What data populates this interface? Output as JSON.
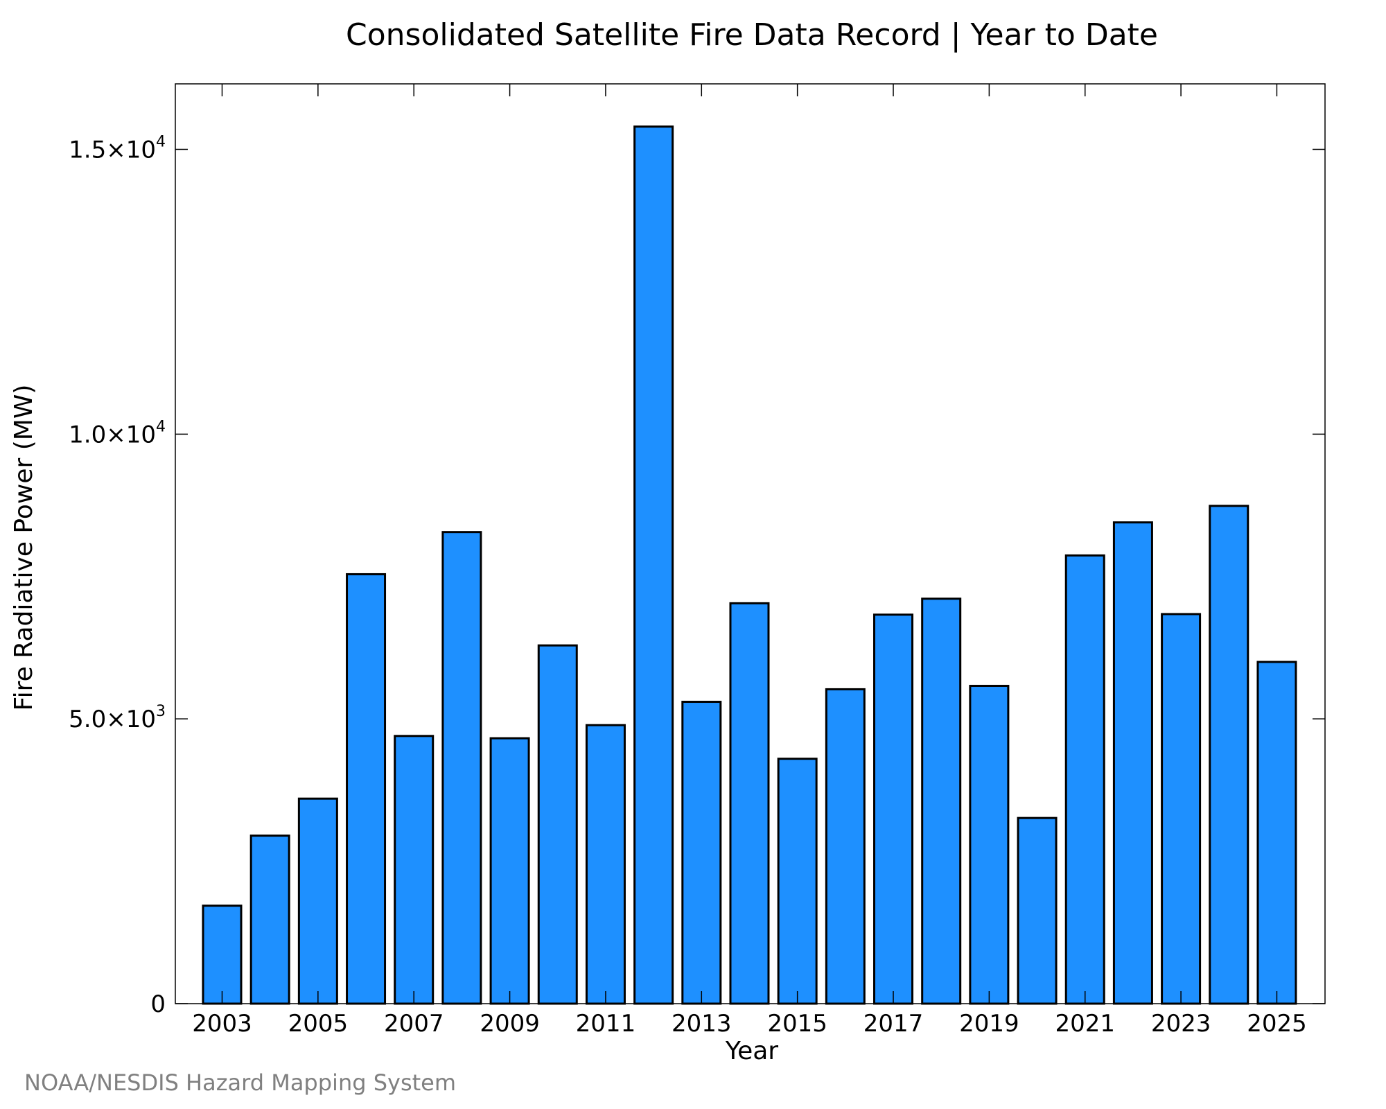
{
  "chart_data": {
    "type": "bar",
    "title": "Consolidated Satellite Fire Data Record | Year to Date",
    "xlabel": "Year",
    "ylabel": "Fire Radiative Power (MW)",
    "credit": "NOAA/NESDIS Hazard Mapping System",
    "bar_color": "#1E90FF",
    "ylim": [
      0,
      16150
    ],
    "categories": [
      2003,
      2004,
      2005,
      2006,
      2007,
      2008,
      2009,
      2010,
      2011,
      2012,
      2013,
      2014,
      2015,
      2016,
      2017,
      2018,
      2019,
      2020,
      2021,
      2022,
      2023,
      2024,
      2025
    ],
    "values": [
      1720,
      2950,
      3600,
      7540,
      4700,
      8280,
      4660,
      6290,
      4890,
      15400,
      5300,
      7030,
      4300,
      5520,
      6830,
      7110,
      5580,
      3260,
      7870,
      8450,
      6840,
      8740,
      6000
    ],
    "x_tick_labels": [
      "2003",
      "2005",
      "2007",
      "2009",
      "2011",
      "2013",
      "2015",
      "2017",
      "2019",
      "2021",
      "2023",
      "2025"
    ],
    "y_ticks": [
      {
        "value": 0,
        "mantissa": "0",
        "exp": ""
      },
      {
        "value": 5000,
        "mantissa": "5.0×10",
        "exp": "3"
      },
      {
        "value": 10000,
        "mantissa": "1.0×10",
        "exp": "4"
      },
      {
        "value": 15000,
        "mantissa": "1.5×10",
        "exp": "4"
      }
    ]
  }
}
